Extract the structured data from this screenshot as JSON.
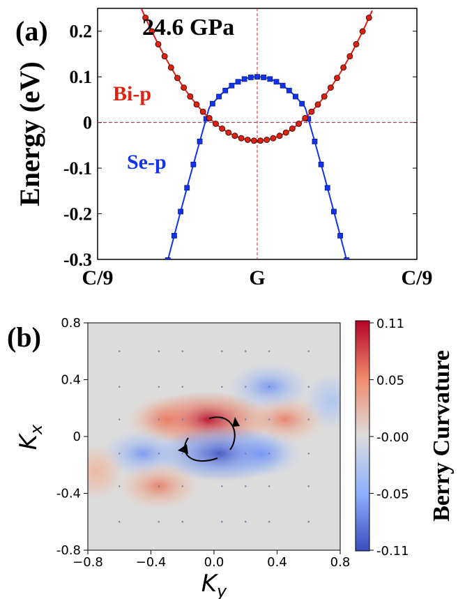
{
  "panel_a": {
    "label": "(a)",
    "pressure_label": "24.6 GPa",
    "ylabel": "Energy (eV)",
    "bi_label": "Bi-p",
    "se_label": "Se-p",
    "colors": {
      "bi": "#dd2211",
      "se": "#1133ee",
      "guide": "#8b2252",
      "vline": "#cc2222"
    }
  },
  "panel_b": {
    "label": "(b)",
    "xlabel_main": "K",
    "xlabel_sub": "y",
    "ylabel_main": "K",
    "ylabel_sub": "x",
    "colorbar_label": "Berry Curvature",
    "colorbar_ticks": [
      "0.11",
      "0.05",
      "-0.00",
      "-0.05",
      "-0.11"
    ]
  },
  "chart_data": [
    {
      "type": "line",
      "ylim": [
        -0.3,
        0.25
      ],
      "xlim": [
        -1,
        1
      ],
      "x_ticks": [
        {
          "label": "C/9",
          "x": -1
        },
        {
          "label": "G",
          "x": 0
        },
        {
          "label": "C/9",
          "x": 1
        }
      ],
      "y_ticks": [
        {
          "label": "-0.3",
          "v": -0.3
        },
        {
          "label": "-0.2",
          "v": -0.2
        },
        {
          "label": "-0.1",
          "v": -0.1
        },
        {
          "label": "0",
          "v": 0
        },
        {
          "label": "0.1",
          "v": 0.1
        },
        {
          "label": "0.2",
          "v": 0.2
        }
      ],
      "series": [
        {
          "name": "Bi-p",
          "x": [
            -0.72,
            -0.6,
            -0.48,
            -0.36,
            -0.24,
            -0.12,
            0.0,
            0.12,
            0.24,
            0.36,
            0.48,
            0.6,
            0.72,
            0.84
          ],
          "values": [
            0.25,
            0.18,
            0.117,
            0.062,
            0.02,
            -0.03,
            -0.04,
            -0.03,
            0.02,
            0.062,
            0.117,
            0.18,
            0.25,
            0.25
          ]
        },
        {
          "name": "Se-p",
          "x": [
            -0.72,
            -0.6,
            -0.48,
            -0.36,
            -0.24,
            -0.12,
            0.0,
            0.12,
            0.24,
            0.36,
            0.48,
            0.6,
            0.72
          ],
          "values": [
            -0.3,
            -0.2,
            -0.1,
            -0.02,
            0.04,
            0.085,
            0.1,
            0.085,
            0.04,
            -0.02,
            -0.1,
            -0.2,
            -0.3
          ]
        }
      ],
      "reference_lines": {
        "y": 0,
        "x": 0
      }
    },
    {
      "type": "heatmap",
      "xlim": [
        -0.8,
        0.8
      ],
      "ylim": [
        -0.8,
        0.8
      ],
      "x_ticks": [
        "−0.8",
        "−0.4",
        "0.0",
        "0.4",
        "0.8"
      ],
      "y_ticks": [
        "0.8",
        "0.4",
        "0",
        "-0.4",
        "-0.8"
      ],
      "colorbar_range": [
        -0.11,
        0.11
      ],
      "colormap": "coolwarm",
      "features": [
        {
          "kx": 0.12,
          "ky": -0.05,
          "value": 0.11
        },
        {
          "kx": 0.12,
          "ky": -0.3,
          "value": 0.07
        },
        {
          "kx": 0.12,
          "ky": 0.45,
          "value": 0.06
        },
        {
          "kx": -0.12,
          "ky": 0.05,
          "value": -0.11
        },
        {
          "kx": -0.12,
          "ky": 0.3,
          "value": -0.07
        },
        {
          "kx": -0.12,
          "ky": -0.45,
          "value": -0.06
        },
        {
          "kx": 0.35,
          "ky": 0.35,
          "value": -0.05
        },
        {
          "kx": -0.35,
          "ky": -0.35,
          "value": 0.05
        },
        {
          "kx": 0.25,
          "ky": 0.75,
          "value": -0.03
        },
        {
          "kx": -0.25,
          "ky": -0.75,
          "value": 0.03
        }
      ]
    }
  ]
}
